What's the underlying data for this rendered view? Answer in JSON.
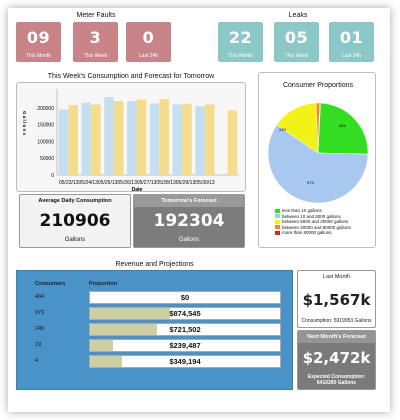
{
  "meter_faults": {
    "title": "Meter Faults",
    "tiles": [
      {
        "value": "09",
        "label": "This Month"
      },
      {
        "value": "3",
        "label": "This Week"
      },
      {
        "value": "0",
        "label": "Last 24h"
      }
    ]
  },
  "leaks": {
    "title": "Leaks",
    "tiles": [
      {
        "value": "22",
        "label": "This Month"
      },
      {
        "value": "05",
        "label": "This Week"
      },
      {
        "value": "01",
        "label": "Last 24h"
      }
    ]
  },
  "consumption_chart": {
    "title": "This Week's Consumption and Forecast for Tomorrow",
    "ylabel": "G a l l o n s",
    "xlabel": "Date",
    "x_ticks_text": "05/23/1305/24/1305/25/1305/26/1305/27/1305/28/1305/29/1305/30/13"
  },
  "avg_daily": {
    "label": "Average Daily Consumption",
    "value": "210906",
    "unit": "Gallons"
  },
  "forecast": {
    "label": "Tomorrow's Forecast",
    "value": "192304",
    "unit": "Gallons"
  },
  "consumer_proportions": {
    "title": "Consumer Proportions",
    "slice_labels": [
      "404",
      "973",
      "245"
    ],
    "legend": [
      {
        "label": "less than 10 gallons",
        "color": "#33dd22"
      },
      {
        "label": "between 10 and 5000 gallons",
        "color": "#a9c8f0"
      },
      {
        "label": "between 5000 and 20000 gallons",
        "color": "#f2f219"
      },
      {
        "label": "between 20000 and 80000 gallons",
        "color": "#f08a1a"
      },
      {
        "label": "more than 80000 gallons",
        "color": "#dd2222"
      }
    ]
  },
  "revenue": {
    "title": "Revenue and Projections",
    "col_consumers": "Consumers",
    "col_proportion": "Proportion",
    "rows": [
      {
        "consumers": "404",
        "value": "$0",
        "fill": 0.0
      },
      {
        "consumers": "973",
        "value": "$874,545",
        "fill": 0.42
      },
      {
        "consumers": "245",
        "value": "$721,502",
        "fill": 0.35
      },
      {
        "consumers": "19",
        "value": "$239,487",
        "fill": 0.12
      },
      {
        "consumers": "4",
        "value": "$349,194",
        "fill": 0.17
      }
    ]
  },
  "last_month": {
    "label": "Last Month",
    "value": "$1,567k",
    "foot": "Consumption: 5919953 Gallons"
  },
  "next_month": {
    "label": "Next Month's Forecast",
    "value": "$2,472k",
    "foot": "Expected Consumption: 6410280 Gallons"
  },
  "chart_data": {
    "type": "bar",
    "title": "This Week's Consumption and Forecast for Tomorrow",
    "xlabel": "Date",
    "ylabel": "Gallons",
    "categories": [
      "05/23/13",
      "05/24/13",
      "05/25/13",
      "05/26/13",
      "05/27/13",
      "05/28/13",
      "05/29/13",
      "05/30/13"
    ],
    "series": [
      {
        "values": [
          195000,
          215000,
          232000,
          220000,
          213000,
          210000,
          205000,
          0
        ],
        "color": "#c6dff0"
      },
      {
        "values": [
          208000,
          210000,
          220000,
          225000,
          226000,
          212000,
          210000,
          192000
        ],
        "color": "#f5dc8c"
      }
    ],
    "ylim": [
      0,
      250000
    ],
    "y_ticks": [
      0,
      50000,
      100000,
      150000,
      200000
    ]
  },
  "pie_data": {
    "type": "pie",
    "values": [
      404,
      973,
      245,
      19,
      4
    ],
    "colors": [
      "#33dd22",
      "#a9c8f0",
      "#f2f219",
      "#f08a1a",
      "#dd2222"
    ]
  }
}
